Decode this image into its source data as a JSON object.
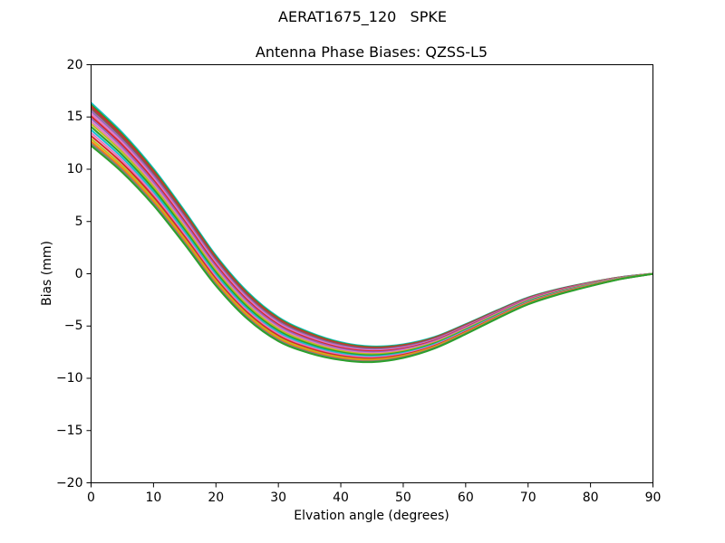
{
  "figure": {
    "suptitle": "AERAT1675_120   SPKE",
    "axes_title": "Antenna Phase Biases: QZSS-L5",
    "xlabel": "Elvation angle (degrees)",
    "ylabel": "Bias (mm)"
  },
  "colors": {
    "background": "#ffffff",
    "axes": "#000000",
    "text": "#000000"
  },
  "chart_data": {
    "type": "line",
    "title": "Antenna Phase Biases: QZSS-L5",
    "suptitle": "AERAT1675_120   SPKE",
    "xlabel": "Elvation angle (degrees)",
    "ylabel": "Bias (mm)",
    "xlim": [
      0,
      90
    ],
    "ylim": [
      -20,
      20
    ],
    "grid": false,
    "legend": "none",
    "xticks": [
      {
        "v": 0,
        "label": "0"
      },
      {
        "v": 10,
        "label": "10"
      },
      {
        "v": 20,
        "label": "20"
      },
      {
        "v": 30,
        "label": "30"
      },
      {
        "v": 40,
        "label": "40"
      },
      {
        "v": 50,
        "label": "50"
      },
      {
        "v": 60,
        "label": "60"
      },
      {
        "v": 70,
        "label": "70"
      },
      {
        "v": 80,
        "label": "80"
      },
      {
        "v": 90,
        "label": "90"
      }
    ],
    "yticks": [
      {
        "v": -20,
        "label": "−20"
      },
      {
        "v": -15,
        "label": "−15"
      },
      {
        "v": -10,
        "label": "−10"
      },
      {
        "v": -5,
        "label": "−5"
      },
      {
        "v": 0,
        "label": "0"
      },
      {
        "v": 5,
        "label": "5"
      },
      {
        "v": 10,
        "label": "10"
      },
      {
        "v": 15,
        "label": "15"
      },
      {
        "v": 20,
        "label": "20"
      }
    ],
    "x": [
      0,
      5,
      10,
      15,
      20,
      25,
      30,
      35,
      40,
      45,
      50,
      55,
      60,
      65,
      70,
      75,
      80,
      85,
      90
    ],
    "band_center": [
      14.3,
      11.6,
      8.3,
      4.4,
      0.3,
      -3.0,
      -5.3,
      -6.6,
      -7.4,
      -7.7,
      -7.4,
      -6.6,
      -5.3,
      -3.9,
      -2.6,
      -1.7,
      -1.0,
      -0.4,
      0.0
    ],
    "band_halfwidth": [
      2.05,
      1.9,
      1.75,
      1.6,
      1.45,
      1.3,
      1.15,
      1.0,
      0.85,
      0.75,
      0.65,
      0.55,
      0.48,
      0.4,
      0.33,
      0.26,
      0.18,
      0.09,
      0.01
    ],
    "line_width": 2,
    "series": [
      {
        "name": "line-01",
        "color": "#17becf",
        "offset_frac": 1.0
      },
      {
        "name": "line-02",
        "color": "#2ca02c",
        "offset_frac": 0.92
      },
      {
        "name": "line-03",
        "color": "#d62728",
        "offset_frac": 0.84
      },
      {
        "name": "line-04",
        "color": "#8c564b",
        "offset_frac": 0.74
      },
      {
        "name": "line-05",
        "color": "#9467bd",
        "offset_frac": 0.62
      },
      {
        "name": "line-06",
        "color": "#e377c2",
        "offset_frac": 0.5
      },
      {
        "name": "line-07",
        "color": "#d62728",
        "offset_frac": 0.38
      },
      {
        "name": "line-08",
        "color": "#9467bd",
        "offset_frac": 0.27
      },
      {
        "name": "line-09",
        "color": "#e377c2",
        "offset_frac": 0.14
      },
      {
        "name": "line-10",
        "color": "#bcbd22",
        "offset_frac": 0.02
      },
      {
        "name": "line-11",
        "color": "#2ca02c",
        "offset_frac": -0.12
      },
      {
        "name": "line-12",
        "color": "#17becf",
        "offset_frac": -0.26
      },
      {
        "name": "line-13",
        "color": "#e377c2",
        "offset_frac": -0.4
      },
      {
        "name": "line-14",
        "color": "#d62728",
        "offset_frac": -0.54
      },
      {
        "name": "line-15",
        "color": "#bcbd22",
        "offset_frac": -0.68
      },
      {
        "name": "line-16",
        "color": "#ff7f0e",
        "offset_frac": -0.8
      },
      {
        "name": "line-17",
        "color": "#7f7f7f",
        "offset_frac": -0.9
      },
      {
        "name": "line-18",
        "color": "#2ca02c",
        "offset_frac": -1.0
      }
    ]
  }
}
